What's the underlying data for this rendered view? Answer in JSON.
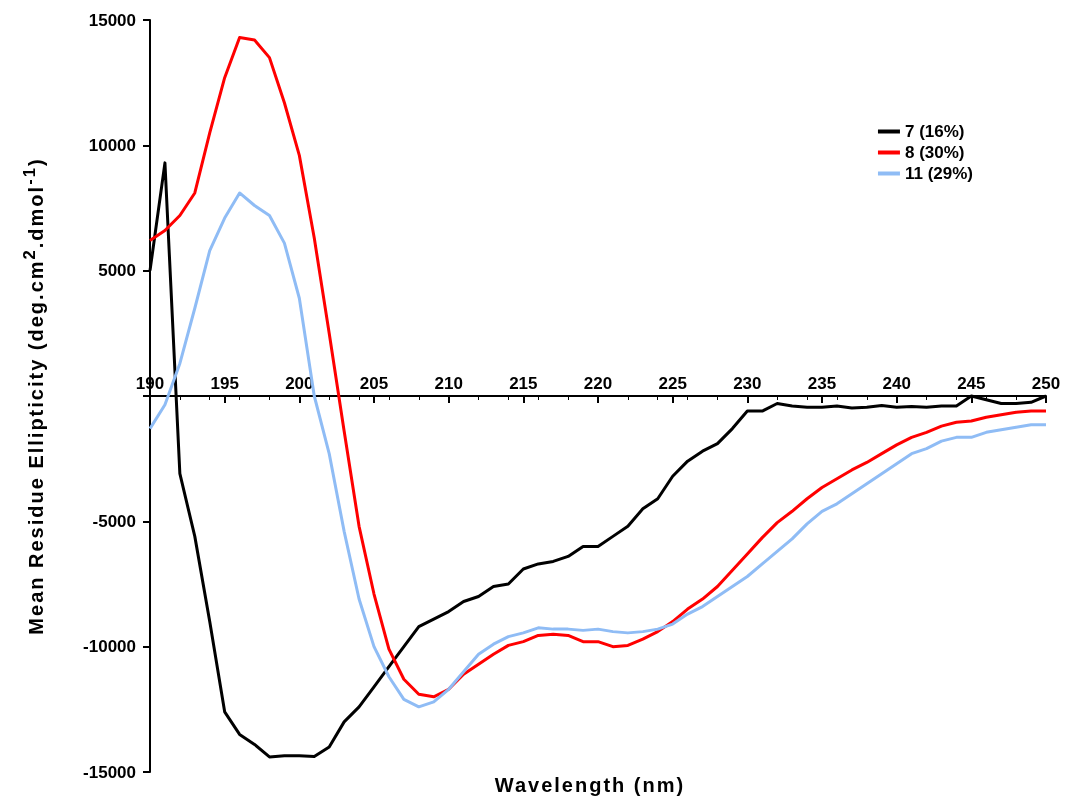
{
  "chart_data": {
    "type": "line",
    "xlabel": "Wavelength (nm)",
    "ylabel": "Mean Residue Ellipticity (deg.cm$^{2}$.dmol$^{-1}$)",
    "x": [
      190,
      191,
      192,
      193,
      194,
      195,
      196,
      197,
      198,
      199,
      200,
      201,
      202,
      203,
      204,
      205,
      206,
      207,
      208,
      209,
      210,
      211,
      212,
      213,
      214,
      215,
      216,
      217,
      218,
      219,
      220,
      221,
      222,
      223,
      224,
      225,
      226,
      227,
      228,
      229,
      230,
      231,
      232,
      233,
      234,
      235,
      236,
      237,
      238,
      239,
      240,
      241,
      242,
      243,
      244,
      245,
      246,
      247,
      248,
      249,
      250
    ],
    "series": [
      {
        "name": "7 (16%)",
        "color": "#000000",
        "values": [
          5000,
          9300,
          -3100,
          -5600,
          -9000,
          -12600,
          -13500,
          -13900,
          -14400,
          -14350,
          -14350,
          -14380,
          -14000,
          -13000,
          -12400,
          -11600,
          -10800,
          -10000,
          -9200,
          -8900,
          -8600,
          -8200,
          -8000,
          -7600,
          -7500,
          -6900,
          -6700,
          -6600,
          -6400,
          -6000,
          -6000,
          -5600,
          -5200,
          -4500,
          -4100,
          -3200,
          -2600,
          -2200,
          -1900,
          -1300,
          -600,
          -600,
          -300,
          -400,
          -450,
          -450,
          -400,
          -480,
          -450,
          -380,
          -450,
          -420,
          -450,
          -400,
          -400,
          0,
          -150,
          -300,
          -300,
          -250,
          0
        ]
      },
      {
        "name": "8 (30%)",
        "color": "#ff0000",
        "values": [
          6200,
          6600,
          7200,
          8100,
          10500,
          12700,
          14300,
          14200,
          13500,
          11700,
          9600,
          6300,
          2500,
          -1400,
          -5200,
          -7900,
          -10100,
          -11300,
          -11900,
          -12000,
          -11700,
          -11100,
          -10700,
          -10300,
          -9950,
          -9800,
          -9550,
          -9500,
          -9550,
          -9800,
          -9800,
          -10000,
          -9950,
          -9700,
          -9400,
          -9000,
          -8500,
          -8100,
          -7600,
          -6950,
          -6300,
          -5650,
          -5050,
          -4600,
          -4100,
          -3650,
          -3300,
          -2950,
          -2650,
          -2300,
          -1950,
          -1650,
          -1450,
          -1200,
          -1050,
          -1000,
          -850,
          -750,
          -650,
          -600,
          -600
        ]
      },
      {
        "name": "11 (29%)",
        "color": "#8fbcf5",
        "values": [
          -1300,
          -350,
          1300,
          3500,
          5800,
          7100,
          8100,
          7600,
          7200,
          6100,
          3900,
          0,
          -2300,
          -5400,
          -8100,
          -10000,
          -11200,
          -12100,
          -12400,
          -12200,
          -11700,
          -11000,
          -10300,
          -9900,
          -9600,
          -9450,
          -9250,
          -9300,
          -9300,
          -9350,
          -9300,
          -9400,
          -9450,
          -9400,
          -9300,
          -9100,
          -8700,
          -8400,
          -8000,
          -7600,
          -7200,
          -6700,
          -6200,
          -5700,
          -5100,
          -4600,
          -4300,
          -3900,
          -3500,
          -3100,
          -2700,
          -2300,
          -2100,
          -1800,
          -1650,
          -1650,
          -1450,
          -1350,
          -1250,
          -1150,
          -1150
        ]
      }
    ],
    "xlim": [
      190,
      250
    ],
    "xticks": [
      190,
      195,
      200,
      205,
      210,
      215,
      220,
      225,
      230,
      235,
      240,
      245,
      250
    ],
    "ylim": [
      -15000,
      15000
    ],
    "yticks": [
      -15000,
      -10000,
      -5000,
      {
        "value": 0,
        "label": null
      },
      5000,
      10000,
      15000
    ],
    "grid": false,
    "legend": "top right",
    "marker": "none",
    "line_style": "solid"
  }
}
